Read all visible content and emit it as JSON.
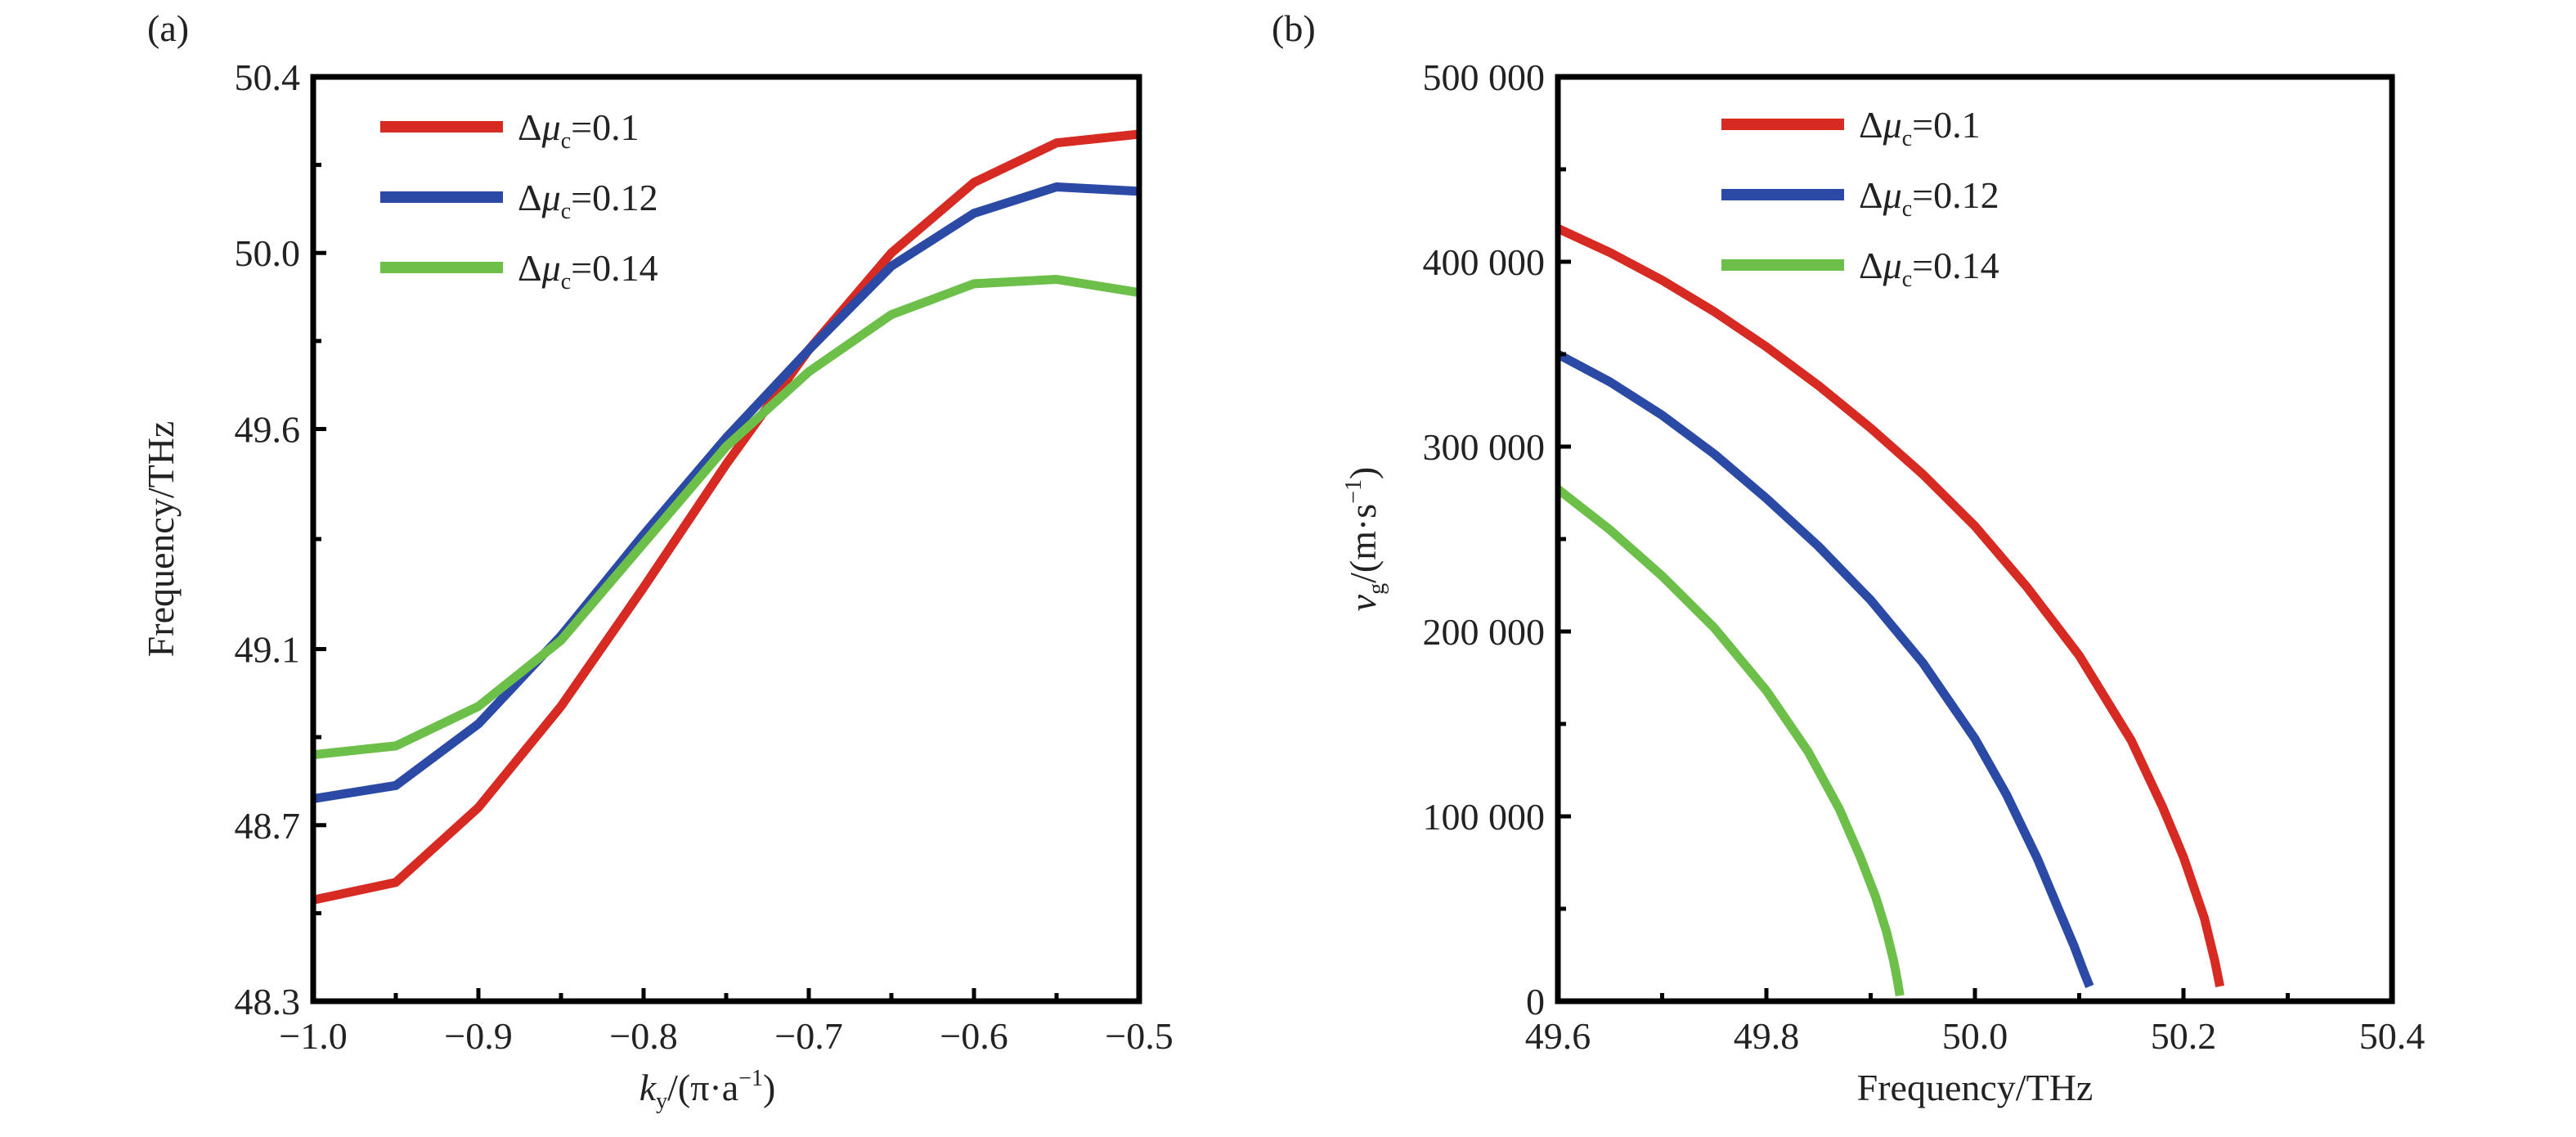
{
  "colors": {
    "red": "#d62a22",
    "blue": "#2b4aa6",
    "green": "#6cc04a"
  },
  "chart_data": [
    {
      "panel_label": "(a)",
      "type": "line",
      "xlabel_italic": "k",
      "xlabel_sub": "y",
      "xlabel_rest": "/(π·a",
      "xlabel_sup": "−1",
      "xlabel_close": ")",
      "ylabel": "Frequency/THz",
      "xlim": [
        -1.0,
        -0.5
      ],
      "ylim": [
        48.3,
        50.4
      ],
      "xticks": [
        "−1.0",
        "−0.9",
        "−0.8",
        "−0.7",
        "−0.6",
        "−0.5"
      ],
      "xtick_values": [
        -1.0,
        -0.9,
        -0.8,
        -0.7,
        -0.6,
        -0.5
      ],
      "yticks": [
        "48.3",
        "48.7",
        "49.1",
        "49.6",
        "50.0",
        "50.4"
      ],
      "ytick_values": [
        48.3,
        48.7,
        49.1,
        49.6,
        50.0,
        50.4
      ],
      "legend_position": "top-left",
      "x": [
        -1.0,
        -0.95,
        -0.9,
        -0.85,
        -0.8,
        -0.75,
        -0.7,
        -0.65,
        -0.6,
        -0.55,
        -0.5
      ],
      "series": [
        {
          "name_prefix": "Δ",
          "name_italic": "μ",
          "name_sub": "c",
          "name_suffix": "=0.1",
          "color_key": "red",
          "values": [
            48.53,
            48.57,
            48.74,
            48.97,
            49.24,
            49.52,
            49.78,
            50.0,
            50.16,
            50.25,
            50.27
          ]
        },
        {
          "name_prefix": "Δ",
          "name_italic": "μ",
          "name_sub": "c",
          "name_suffix": "=0.12",
          "color_key": "blue",
          "values": [
            48.76,
            48.79,
            48.93,
            49.13,
            49.36,
            49.58,
            49.78,
            49.97,
            50.09,
            50.15,
            50.14
          ]
        },
        {
          "name_prefix": "Δ",
          "name_italic": "μ",
          "name_sub": "c",
          "name_suffix": "=0.14",
          "color_key": "green",
          "values": [
            48.86,
            48.88,
            48.97,
            49.12,
            49.34,
            49.56,
            49.73,
            49.86,
            49.93,
            49.94,
            49.91
          ]
        }
      ]
    },
    {
      "panel_label": "(b)",
      "type": "line",
      "xlabel": "Frequency/THz",
      "ylabel_italic": "v",
      "ylabel_sub": "g",
      "ylabel_rest": "/(m·s",
      "ylabel_sup": "−1",
      "ylabel_close": ")",
      "xlim": [
        49.6,
        50.4
      ],
      "ylim": [
        0,
        500000
      ],
      "xticks": [
        "49.6",
        "49.8",
        "50.0",
        "50.2",
        "50.4"
      ],
      "xtick_values": [
        49.6,
        49.8,
        50.0,
        50.2,
        50.4
      ],
      "yticks": [
        "0",
        "100 000",
        "200 000",
        "300 000",
        "400 000",
        "500 000"
      ],
      "ytick_values": [
        0,
        100000,
        200000,
        300000,
        400000,
        500000
      ],
      "legend_position": "top-center",
      "series": [
        {
          "name_prefix": "Δ",
          "name_italic": "μ",
          "name_sub": "c",
          "name_suffix": "=0.1",
          "color_key": "red",
          "x": [
            49.6,
            49.65,
            49.7,
            49.75,
            49.8,
            49.85,
            49.9,
            49.95,
            50.0,
            50.05,
            50.1,
            50.15,
            50.18,
            50.2,
            50.22,
            50.23,
            50.235
          ],
          "values": [
            418000,
            405000,
            390000,
            373000,
            354000,
            333000,
            310000,
            285000,
            257000,
            224000,
            187000,
            141000,
            105000,
            78000,
            45000,
            22000,
            8000
          ]
        },
        {
          "name_prefix": "Δ",
          "name_italic": "μ",
          "name_sub": "c",
          "name_suffix": "=0.12",
          "color_key": "blue",
          "x": [
            49.6,
            49.65,
            49.7,
            49.75,
            49.8,
            49.85,
            49.9,
            49.95,
            50.0,
            50.03,
            50.06,
            50.08,
            50.095,
            50.105,
            50.11
          ],
          "values": [
            350000,
            335000,
            317000,
            296000,
            272000,
            246000,
            217000,
            183000,
            142000,
            112000,
            77000,
            50000,
            30000,
            15000,
            8000
          ]
        },
        {
          "name_prefix": "Δ",
          "name_italic": "μ",
          "name_sub": "c",
          "name_suffix": "=0.14",
          "color_key": "green",
          "x": [
            49.6,
            49.65,
            49.7,
            49.75,
            49.8,
            49.84,
            49.87,
            49.89,
            49.905,
            49.915,
            49.922,
            49.926,
            49.928
          ],
          "values": [
            277000,
            255000,
            230000,
            202000,
            168000,
            135000,
            104000,
            78000,
            56000,
            38000,
            22000,
            10000,
            3000
          ]
        }
      ]
    }
  ]
}
